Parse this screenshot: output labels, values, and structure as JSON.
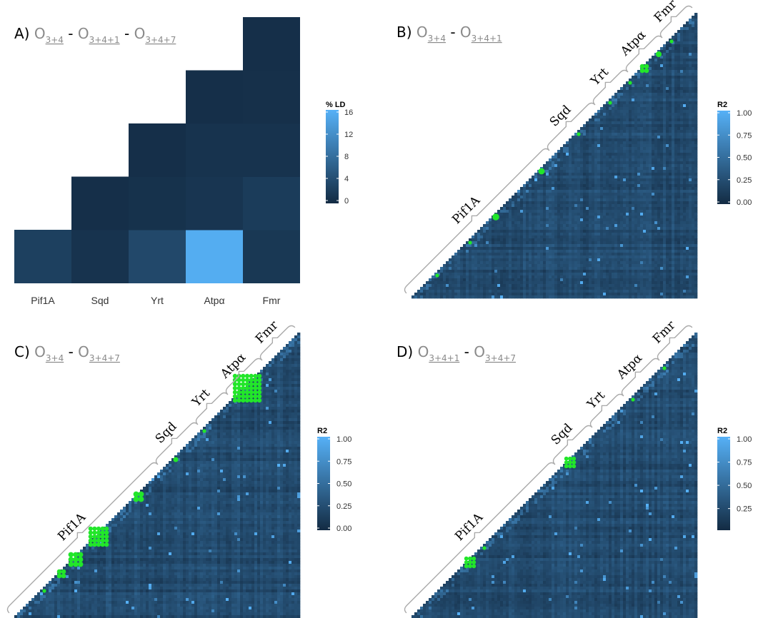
{
  "colors": {
    "low": "#132b43",
    "high": "#56b1f7",
    "green": "#22e62a"
  },
  "chart_data": [
    {
      "id": "A",
      "type": "heatmap",
      "title_letter": "A)",
      "title_terms": [
        {
          "sym": "O",
          "sub": "3+4"
        },
        {
          "sym": "O",
          "sub": "3+4+1"
        },
        {
          "sym": "O",
          "sub": "3+4+7"
        }
      ],
      "categories": [
        "Pif1A",
        "Sqd",
        "Yrt",
        "Atpα",
        "Fmr"
      ],
      "cells": [
        {
          "row": "Pif1A",
          "col": "Pif1A",
          "value": 2.5
        },
        {
          "row": "Sqd",
          "col": "Sqd",
          "value": 1.0
        },
        {
          "row": "Pif1A",
          "col": "Sqd",
          "value": 0.5
        },
        {
          "row": "Yrt",
          "col": "Yrt",
          "value": 3.5
        },
        {
          "row": "Sqd",
          "col": "Yrt",
          "value": 0.8
        },
        {
          "row": "Pif1A",
          "col": "Yrt",
          "value": 0.5
        },
        {
          "row": "Atpα",
          "col": "Atpα",
          "value": 15.5
        },
        {
          "row": "Yrt",
          "col": "Atpα",
          "value": 1.2
        },
        {
          "row": "Sqd",
          "col": "Atpα",
          "value": 1.0
        },
        {
          "row": "Pif1A",
          "col": "Atpα",
          "value": 0.5
        },
        {
          "row": "Fmr",
          "col": "Fmr",
          "value": 1.5
        },
        {
          "row": "Atpα",
          "col": "Fmr",
          "value": 2.0
        },
        {
          "row": "Yrt",
          "col": "Fmr",
          "value": 1.0
        },
        {
          "row": "Sqd",
          "col": "Fmr",
          "value": 0.6
        },
        {
          "row": "Pif1A",
          "col": "Fmr",
          "value": 0.5
        }
      ],
      "legend_title": "% LD",
      "legend_ticks": [
        "16",
        "12",
        "8",
        "4",
        "0"
      ],
      "value_range": [
        0,
        16
      ]
    },
    {
      "id": "B",
      "type": "heatmap",
      "title_letter": "B)",
      "title_terms": [
        {
          "sym": "O",
          "sub": "3+4"
        },
        {
          "sym": "O",
          "sub": "3+4+1"
        }
      ],
      "gene_labels": [
        "Pif1A",
        "Sqd",
        "Yrt",
        "Atpα",
        "Fmr"
      ],
      "gene_boundaries": [
        0,
        0.5,
        0.66,
        0.775,
        0.895,
        1.0
      ],
      "green_blocks": [
        {
          "t": 0.085,
          "s": 0.008
        },
        {
          "t": 0.2,
          "s": 0.01
        },
        {
          "t": 0.29,
          "s": 0.022
        },
        {
          "t": 0.45,
          "s": 0.02
        },
        {
          "t": 0.58,
          "s": 0.012
        },
        {
          "t": 0.69,
          "s": 0.01
        },
        {
          "t": 0.76,
          "s": 0.006
        },
        {
          "t": 0.81,
          "s": 0.03
        },
        {
          "t": 0.86,
          "s": 0.018
        },
        {
          "t": 0.905,
          "s": 0.012
        }
      ],
      "legend_title": "R2",
      "legend_ticks": [
        "1.00",
        "0.75",
        "0.50",
        "0.25",
        "0.00"
      ],
      "value_range": [
        0,
        1
      ],
      "seed": 11
    },
    {
      "id": "C",
      "type": "heatmap",
      "title_letter": "C)",
      "title_terms": [
        {
          "sym": "O",
          "sub": "3+4"
        },
        {
          "sym": "O",
          "sub": "3+4+7"
        }
      ],
      "gene_labels": [
        "Pif1A",
        "Sqd",
        "Yrt",
        "Atpα",
        "Fmr"
      ],
      "gene_boundaries": [
        0,
        0.52,
        0.66,
        0.765,
        0.885,
        1.0
      ],
      "green_blocks": [
        {
          "t": 0.1,
          "s": 0.008
        },
        {
          "t": 0.16,
          "s": 0.03
        },
        {
          "t": 0.21,
          "s": 0.05
        },
        {
          "t": 0.29,
          "s": 0.07
        },
        {
          "t": 0.43,
          "s": 0.035
        },
        {
          "t": 0.56,
          "s": 0.016
        },
        {
          "t": 0.66,
          "s": 0.01
        },
        {
          "t": 0.81,
          "s": 0.1
        }
      ],
      "legend_title": "R2",
      "legend_ticks": [
        "1.00",
        "0.75",
        "0.50",
        "0.25",
        "0.00"
      ],
      "value_range": [
        0,
        1
      ],
      "seed": 23
    },
    {
      "id": "D",
      "type": "heatmap",
      "title_letter": "D)",
      "title_terms": [
        {
          "sym": "O",
          "sub": "3+4+1"
        },
        {
          "sym": "O",
          "sub": "3+4+7"
        }
      ],
      "gene_labels": [
        "Pif1A",
        "Sqd",
        "Yrt",
        "Atpα",
        "Fmr"
      ],
      "gene_boundaries": [
        0,
        0.52,
        0.65,
        0.76,
        0.885,
        1.0
      ],
      "green_blocks": [
        {
          "t": 0.2,
          "s": 0.04
        },
        {
          "t": 0.25,
          "s": 0.01
        },
        {
          "t": 0.55,
          "s": 0.04
        },
        {
          "t": 0.77,
          "s": 0.01
        },
        {
          "t": 0.88,
          "s": 0.008
        }
      ],
      "legend_title": "R2",
      "legend_ticks": [
        "1.00",
        "0.75",
        "0.50",
        "0.25"
      ],
      "value_range": [
        0.04,
        1
      ],
      "seed": 37
    }
  ]
}
